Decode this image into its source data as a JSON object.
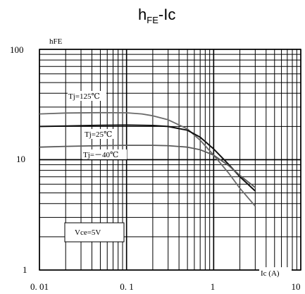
{
  "chart_data": {
    "type": "line",
    "title_main": "h",
    "title_sub": "FE",
    "title_rest": "-Ic",
    "xlabel": "Ic (A)",
    "ylabel": "hFE",
    "x_scale": "log",
    "y_scale": "log",
    "xlim": [
      0.01,
      10
    ],
    "ylim": [
      1,
      100
    ],
    "x_tick_labels": [
      "0. 01",
      "0. 1",
      "1",
      "10"
    ],
    "y_tick_labels": [
      "1",
      "10",
      "100"
    ],
    "grid": true,
    "annotation": "Vce=5V",
    "series": [
      {
        "name": "Tj=125℃",
        "color": "#6a6a6a",
        "x": [
          0.01,
          0.02,
          0.05,
          0.1,
          0.15,
          0.2,
          0.3,
          0.5,
          0.7,
          1.0,
          1.5,
          2.0,
          3.0
        ],
        "y": [
          26,
          26.5,
          26.7,
          26.6,
          26,
          25,
          23,
          19,
          15,
          11,
          7.5,
          5.5,
          3.8
        ]
      },
      {
        "name": "Tj=25℃",
        "color": "#111111",
        "x": [
          0.01,
          0.02,
          0.05,
          0.1,
          0.2,
          0.3,
          0.5,
          0.7,
          1.0,
          1.5,
          2.0,
          3.0
        ],
        "y": [
          20,
          20.2,
          20.5,
          20.6,
          20.4,
          20,
          18.5,
          16,
          12.5,
          9,
          7,
          5.2
        ]
      },
      {
        "name": "Tj=－40℃",
        "color": "#5a5a5a",
        "x": [
          0.01,
          0.02,
          0.05,
          0.1,
          0.2,
          0.3,
          0.5,
          0.7,
          1.0,
          1.5,
          2.0,
          3.0
        ],
        "y": [
          13,
          13.2,
          13.4,
          13.5,
          13.5,
          13.4,
          13,
          12.3,
          11,
          8.8,
          7.2,
          5.6
        ]
      }
    ]
  }
}
